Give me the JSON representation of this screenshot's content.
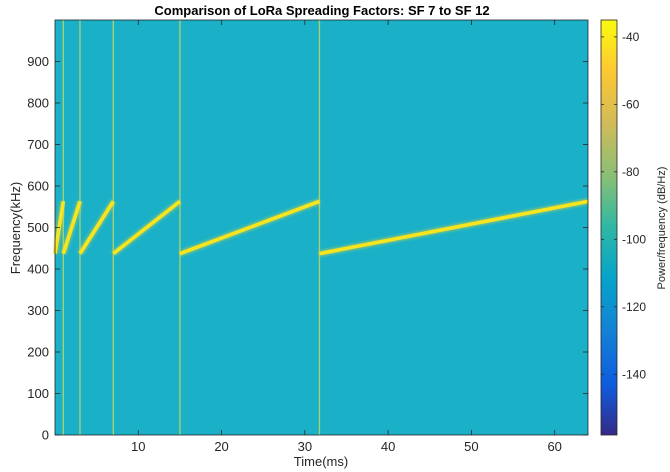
{
  "chart_data": {
    "type": "heatmap",
    "title": "Comparison of LoRa Spreading Factors: SF 7 to SF 12",
    "xlabel": "Time(ms)",
    "ylabel": "Frequency(kHz)",
    "xlim": [
      0,
      64
    ],
    "ylim": [
      0,
      1000
    ],
    "xticks": [
      10,
      20,
      30,
      40,
      50,
      60
    ],
    "yticks": [
      0,
      100,
      200,
      300,
      400,
      500,
      600,
      700,
      800,
      900
    ],
    "background_level_dB": -100,
    "chirps": [
      {
        "sf": 7,
        "t_start": 0.0,
        "t_end": 1.0,
        "f_start": 437,
        "f_end": 563
      },
      {
        "sf": 8,
        "t_start": 1.0,
        "t_end": 3.0,
        "f_start": 437,
        "f_end": 563
      },
      {
        "sf": 9,
        "t_start": 3.0,
        "t_end": 7.0,
        "f_start": 437,
        "f_end": 563
      },
      {
        "sf": 10,
        "t_start": 7.0,
        "t_end": 15.0,
        "f_start": 437,
        "f_end": 563
      },
      {
        "sf": 11,
        "t_start": 15.0,
        "t_end": 31.75,
        "f_start": 437,
        "f_end": 563
      },
      {
        "sf": 12,
        "t_start": 31.75,
        "t_end": 64.0,
        "f_start": 437,
        "f_end": 563
      }
    ],
    "boundaries_ms": [
      1.0,
      3.0,
      7.0,
      15.0,
      31.75
    ],
    "colorbar": {
      "label": "Power/frequency (dB/Hz)",
      "range": [
        -158,
        -35
      ],
      "ticks": [
        -40,
        -60,
        -80,
        -100,
        -120,
        -140
      ],
      "colormap": "parula"
    },
    "colors": {
      "background": "#1ab1c8",
      "chirp": "#f9e51e",
      "boundary": "#b4d46a"
    }
  }
}
